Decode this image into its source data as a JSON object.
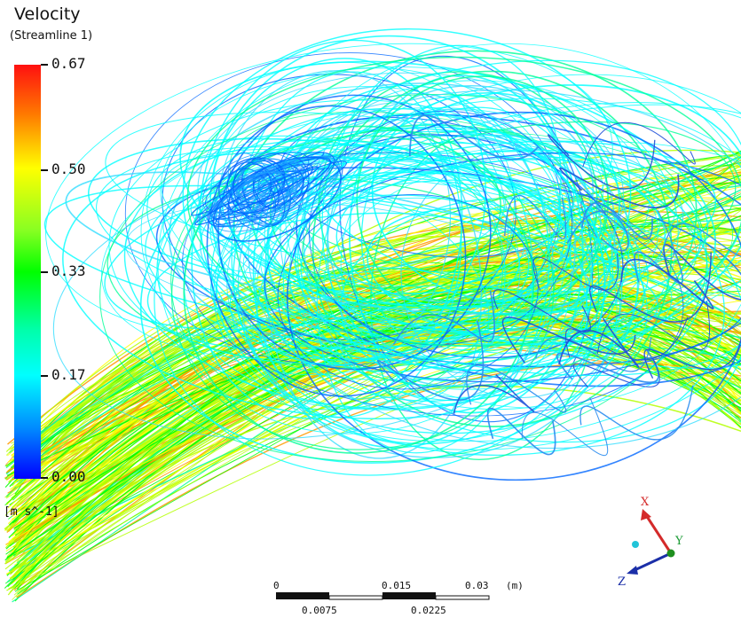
{
  "legend": {
    "title": "Velocity",
    "subtitle": "(Streamline 1)",
    "ticks": [
      "0.67",
      "0.50",
      "0.33",
      "0.17",
      "0.00"
    ],
    "unit": "[m s^-1]"
  },
  "scale_bar": {
    "top_labels": [
      "0",
      "0.015",
      "0.03"
    ],
    "unit": "(m)",
    "bottom_labels": [
      "0.0075",
      "0.0225"
    ]
  },
  "triad": {
    "x_label": "X",
    "y_label": "Y",
    "z_label": "Z",
    "x_color": "#d42a2a",
    "y_color": "#1a9a33",
    "z_color": "#1b2fa8",
    "origin_color": "#1f8f1f",
    "y_dot_color": "#22c4d8"
  },
  "colors": {
    "max": "#ff1010",
    "high": "#ffff00",
    "mid": "#00ff00",
    "low": "#00ffff",
    "min": "#0000ff"
  }
}
